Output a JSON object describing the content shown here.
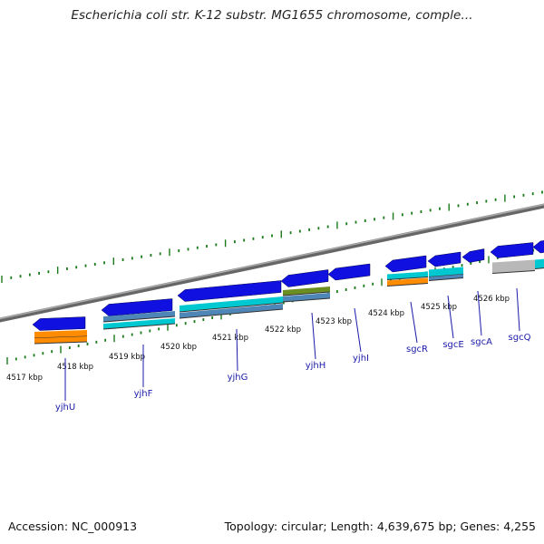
{
  "title": "Escherichia coli str. K-12 substr. MG1655 chromosome, comple...",
  "footer": {
    "accession": "Accession: NC_000913",
    "summary": "Topology: circular; Length: 4,639,675 bp; Genes: 4,255"
  },
  "colors": {
    "gene": "#1010e0",
    "cds_orange": "#ff8c00",
    "cds_cyan": "#00c8d0",
    "cds_steel": "#4f86b8",
    "cds_olive": "#6b8e23",
    "cds_gray": "#b8b8b8",
    "backbone": "#888888",
    "tick": "#1a7a1a",
    "label": "#1a1aa8"
  },
  "scale_labels": [
    "4517 kbp",
    "4518 kbp",
    "4519 kbp",
    "4520 kbp",
    "4521 kbp",
    "4522 kbp",
    "4523 kbp",
    "4524 kbp",
    "4525 kbp",
    "4526 kbp"
  ],
  "gene_labels": [
    "yjhU",
    "yjhF",
    "yjhG",
    "yjhH",
    "yjhI",
    "sgcR",
    "sgcE",
    "sgcA",
    "sgcQ"
  ]
}
